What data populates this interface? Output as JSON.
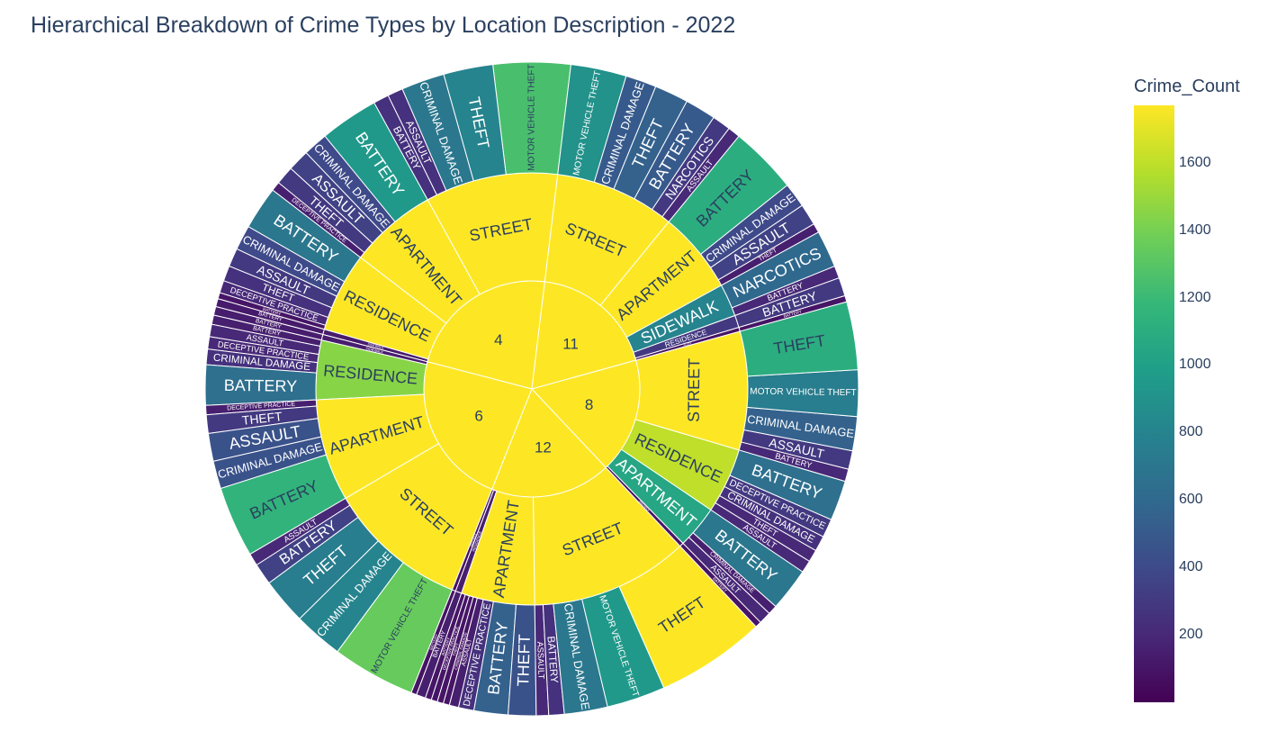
{
  "title": "Hierarchical Breakdown of Crime Types by Location Description - 2022",
  "colorbar": {
    "title": "Crime_Count",
    "ticks": [
      "200",
      "400",
      "600",
      "800",
      "1000",
      "1200",
      "1400",
      "1600"
    ],
    "tick_values": [
      200,
      400,
      600,
      800,
      1000,
      1200,
      1400,
      1600
    ],
    "range": [
      0,
      1770
    ]
  },
  "colorscale": [
    "#440154",
    "#482878",
    "#3e4989",
    "#31688e",
    "#26828e",
    "#1f9e89",
    "#35b779",
    "#6ece58",
    "#b5de2b",
    "#fde725"
  ],
  "chart_data": {
    "type": "sunburst",
    "title": "Hierarchical Breakdown of Crime Types by Location Description - 2022",
    "color_metric": "Crime_Count",
    "root": [
      {
        "name": "4",
        "children": [
          {
            "name": "STREET",
            "children": [
              {
                "name": "MOTOR VEHICLE THEFT",
                "value": 1250
              },
              {
                "name": "THEFT",
                "value": 800
              },
              {
                "name": "CRIMINAL DAMAGE",
                "value": 700
              },
              {
                "name": "ASSAULT",
                "value": 250
              },
              {
                "name": "BATTERY",
                "value": 250
              }
            ]
          },
          {
            "name": "APARTMENT",
            "children": [
              {
                "name": "BATTERY",
                "value": 950
              },
              {
                "name": "CRIMINAL DAMAGE",
                "value": 400
              },
              {
                "name": "ASSAULT",
                "value": 350
              },
              {
                "name": "THEFT",
                "value": 300
              },
              {
                "name": "DECEPTIVE PRACTICE",
                "value": 150
              }
            ]
          },
          {
            "name": "RESIDENCE",
            "children": [
              {
                "name": "BATTERY",
                "value": 700
              },
              {
                "name": "CRIMINAL DAMAGE",
                "value": 400
              },
              {
                "name": "ASSAULT",
                "value": 300
              },
              {
                "name": "THEFT",
                "value": 250
              },
              {
                "name": "DECEPTIVE PRACTICE",
                "value": 200
              },
              {
                "name": "BATTERY",
                "value": 100
              }
            ]
          },
          {
            "name": "SIDEWALK",
            "children": [
              {
                "name": "BATTERY",
                "value": 130
              }
            ]
          }
        ]
      },
      {
        "name": "6",
        "children": [
          {
            "name": "SIDEWALK",
            "children": [
              {
                "name": "BATTERY",
                "value": 140
              }
            ]
          },
          {
            "name": "RESIDENCE",
            "children": [
              {
                "name": "BATTERY",
                "value": 150
              },
              {
                "name": "ASSAULT",
                "value": 200
              },
              {
                "name": "DECEPTIVE PRACTICE",
                "value": 200
              },
              {
                "name": "CRIMINAL DAMAGE",
                "value": 250
              },
              {
                "name": "BATTERY",
                "value": 650
              }
            ]
          },
          {
            "name": "APARTMENT",
            "children": [
              {
                "name": "DECEPTIVE PRACTICE",
                "value": 150
              },
              {
                "name": "THEFT",
                "value": 300
              },
              {
                "name": "ASSAULT",
                "value": 450
              },
              {
                "name": "CRIMINAL DAMAGE",
                "value": 450
              },
              {
                "name": "BATTERY",
                "value": 1150
              }
            ]
          },
          {
            "name": "STREET",
            "children": [
              {
                "name": "ASSAULT",
                "value": 200
              },
              {
                "name": "BATTERY",
                "value": 350
              },
              {
                "name": "THEFT",
                "value": 750
              },
              {
                "name": "CRIMINAL DAMAGE",
                "value": 800
              },
              {
                "name": "MOTOR VEHICLE THEFT",
                "value": 1350
              }
            ]
          }
        ]
      },
      {
        "name": "12",
        "children": [
          {
            "name": "SIDEWALK",
            "children": [
              {
                "name": "BATTERY",
                "value": 90
              }
            ]
          },
          {
            "name": "RESIDENCE",
            "children": [
              {
                "name": "BATTERY",
                "value": 150
              }
            ]
          },
          {
            "name": "APARTMENT",
            "children": [
              {
                "name": "BATTERY",
                "value": 100
              },
              {
                "name": "DECEPTIVE PRACTICE",
                "value": 100
              },
              {
                "name": "THEFT",
                "value": 100
              },
              {
                "name": "CRIMINAL DAMAGE",
                "value": 100
              },
              {
                "name": "ASSAULT",
                "value": 150
              },
              {
                "name": "DECEPTIVE PRACTICE",
                "value": 250
              },
              {
                "name": "BATTERY",
                "value": 550
              },
              {
                "name": "THEFT",
                "value": 450
              }
            ]
          },
          {
            "name": "STREET",
            "children": [
              {
                "name": "ASSAULT",
                "value": 200
              },
              {
                "name": "BATTERY",
                "value": 250
              },
              {
                "name": "CRIMINAL DAMAGE",
                "value": 700
              },
              {
                "name": "MOTOR VEHICLE THEFT",
                "value": 950
              },
              {
                "name": "THEFT",
                "value": 1770
              }
            ]
          }
        ]
      },
      {
        "name": "8",
        "children": [
          {
            "name": "SIDEWALK",
            "children": [
              {
                "name": "BATTERY",
                "value": 100
              }
            ]
          },
          {
            "name": "APARTMENT",
            "children": [
              {
                "name": "ASSAULT",
                "value": 200
              },
              {
                "name": "CRIMINAL DAMAGE",
                "value": 150
              },
              {
                "name": "BATTERY",
                "value": 700
              }
            ]
          },
          {
            "name": "RESIDENCE",
            "children": [
              {
                "name": "ASSAULT",
                "value": 200
              },
              {
                "name": "THEFT",
                "value": 200
              },
              {
                "name": "CRIMINAL DAMAGE",
                "value": 250
              },
              {
                "name": "DECEPTIVE PRACTICE",
                "value": 300
              },
              {
                "name": "BATTERY",
                "value": 650
              }
            ]
          },
          {
            "name": "STREET",
            "children": [
              {
                "name": "BATTERY",
                "value": 200
              },
              {
                "name": "ASSAULT",
                "value": 300
              },
              {
                "name": "CRIMINAL DAMAGE",
                "value": 550
              },
              {
                "name": "MOTOR VEHICLE THEFT",
                "value": 750
              },
              {
                "name": "THEFT",
                "value": 1100
              }
            ]
          }
        ]
      },
      {
        "name": "11",
        "children": [
          {
            "name": "ALLEY",
            "children": [
              {
                "name": "BATTERY",
                "value": 100
              }
            ]
          },
          {
            "name": "RESIDENCE",
            "children": [
              {
                "name": "BATTERY",
                "value": 300
              }
            ]
          },
          {
            "name": "SIDEWALK",
            "children": [
              {
                "name": "BATTERY",
                "value": 200
              },
              {
                "name": "NARCOTICS",
                "value": 600
              }
            ]
          },
          {
            "name": "APARTMENT",
            "children": [
              {
                "name": "THEFT",
                "value": 150
              },
              {
                "name": "ASSAULT",
                "value": 350
              },
              {
                "name": "CRIMINAL DAMAGE",
                "value": 400
              },
              {
                "name": "BATTERY",
                "value": 1100
              }
            ]
          },
          {
            "name": "STREET",
            "children": [
              {
                "name": "ASSAULT",
                "value": 200
              },
              {
                "name": "NARCOTICS",
                "value": 300
              },
              {
                "name": "BATTERY",
                "value": 500
              },
              {
                "name": "THEFT",
                "value": 550
              },
              {
                "name": "CRIMINAL DAMAGE",
                "value": 500
              },
              {
                "name": "MOTOR VEHICLE THEFT",
                "value": 900
              }
            ]
          }
        ]
      }
    ]
  }
}
